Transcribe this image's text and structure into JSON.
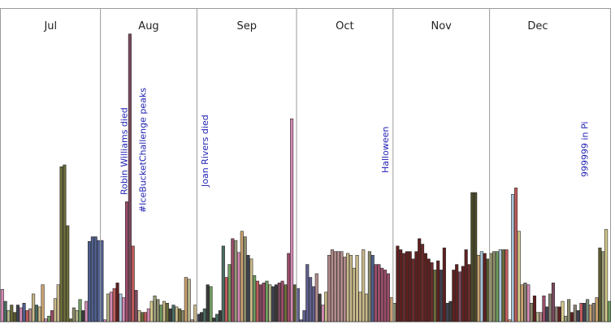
{
  "chart_data": {
    "type": "bar",
    "ylim": [
      0,
      340
    ],
    "months": [
      "Jul",
      "Aug",
      "Sep",
      "Oct",
      "Nov",
      "Dec"
    ],
    "annotations": [
      {
        "label": "Robin Williams died",
        "x": 39
      },
      {
        "label": "#IceBucketChallenge peaks",
        "x": 45
      },
      {
        "label": "Joan Rivers died",
        "x": 65
      },
      {
        "label": "Halloween",
        "x": 123
      },
      {
        "label": "999999 in Pi",
        "x": 187
      }
    ],
    "series": [
      {
        "values": [
          35,
          22,
          12,
          18,
          10,
          18,
          15,
          20,
          12,
          14,
          30,
          18,
          16,
          40,
          3,
          6,
          12,
          25,
          40,
          168,
          170,
          104,
          3,
          15,
          12,
          24,
          12,
          22,
          87,
          92,
          92,
          88,
          88,
          2,
          30,
          32,
          36,
          42,
          30,
          26,
          130,
          312,
          82,
          34,
          12,
          10,
          10,
          14,
          22,
          28,
          24,
          18,
          22,
          20,
          14,
          18,
          16,
          14,
          12,
          48,
          46,
          2,
          18,
          8,
          10,
          14,
          40,
          38,
          4,
          8,
          12,
          82,
          48,
          62,
          90,
          88,
          75,
          98,
          92,
          72,
          68,
          50,
          44,
          40,
          42,
          44,
          40,
          38,
          40,
          42,
          44,
          40,
          74,
          220,
          40,
          36,
          2,
          12,
          62,
          48,
          38,
          52,
          30,
          18,
          32,
          72,
          78,
          76,
          76,
          76,
          70,
          74,
          72,
          58,
          72,
          32,
          78,
          30,
          76,
          72,
          62,
          62,
          58,
          56,
          52,
          26,
          20,
          82,
          78,
          74,
          76,
          76,
          68,
          76,
          90,
          84,
          74,
          68,
          64,
          56,
          66,
          56,
          80,
          20,
          22,
          56,
          62,
          54,
          60,
          78,
          62,
          140,
          140,
          72,
          76,
          74,
          68,
          74,
          76,
          76,
          78,
          78,
          78,
          2,
          138,
          145,
          98,
          40,
          42,
          40,
          20,
          28,
          10,
          10,
          28,
          16,
          30,
          42,
          16,
          16,
          22,
          6,
          24,
          10,
          18,
          12,
          20,
          20,
          24,
          18,
          20,
          26,
          80,
          76,
          100,
          22
        ]
      }
    ]
  }
}
